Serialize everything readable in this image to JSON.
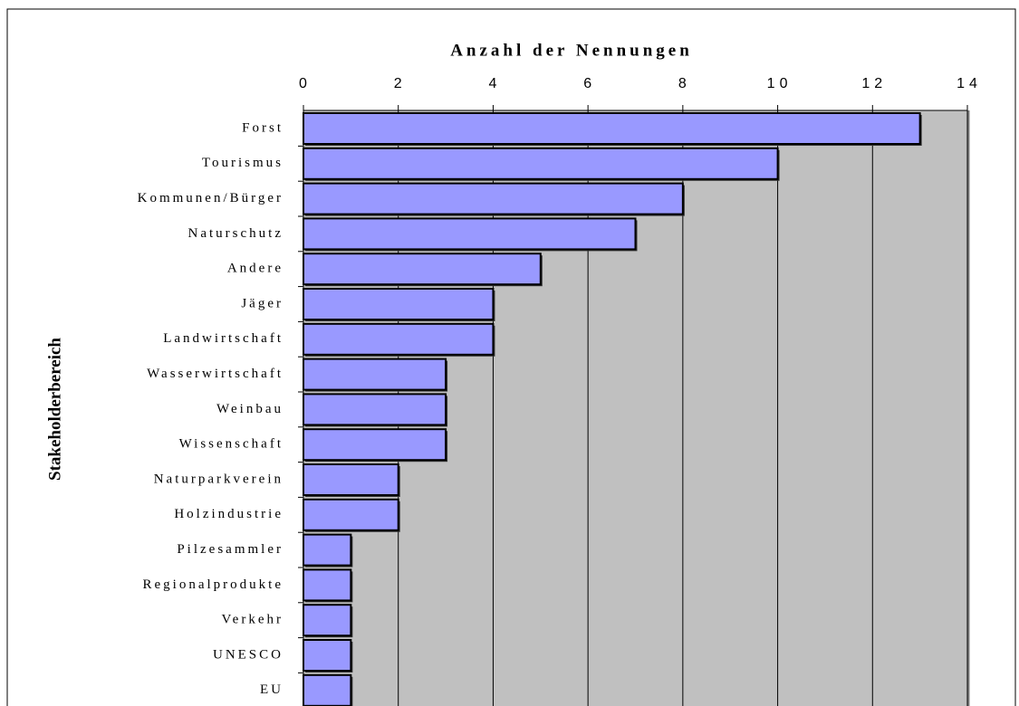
{
  "chart_data": {
    "type": "bar",
    "orientation": "horizontal",
    "title": "Anzahl der Nennungen",
    "y_label": "Stakeholderbereich",
    "categories": [
      "Forst",
      "Tourismus",
      "Kommunen/Bürger",
      "Naturschutz",
      "Andere",
      "Jäger",
      "Landwirtschaft",
      "Wasserwirtschaft",
      "Weinbau",
      "Wissenschaft",
      "Naturparkverein",
      "Holzindustrie",
      "Pilzesammler",
      "Regionalprodukte",
      "Verkehr",
      "UNESCO",
      "EU"
    ],
    "values": [
      13,
      10,
      8,
      7,
      5,
      4,
      4,
      3,
      3,
      3,
      2,
      2,
      1,
      1,
      1,
      1,
      1
    ],
    "color": "#9999ff",
    "xlim": [
      0,
      14
    ],
    "xticks": [
      0,
      2,
      4,
      6,
      8,
      10,
      12,
      14
    ],
    "grid": true
  }
}
